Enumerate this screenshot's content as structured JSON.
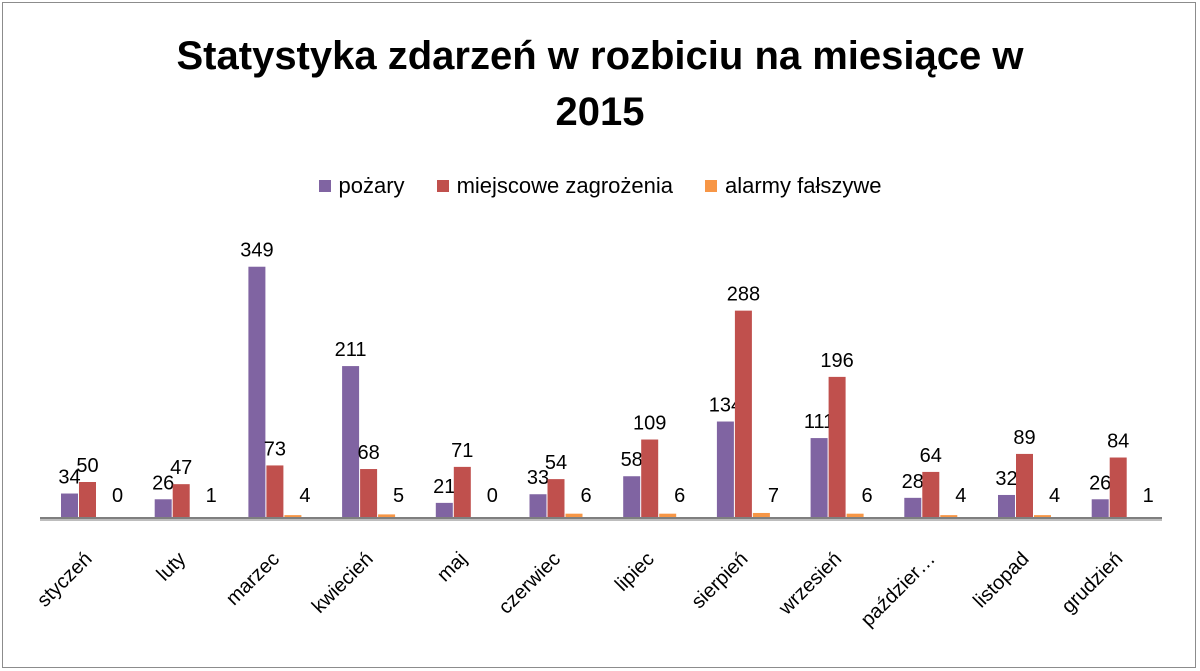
{
  "chart_data": {
    "type": "bar",
    "title": "Statystyka zdarzeń w rozbiciu na miesiące w 2015",
    "title_lines": [
      "Statystyka zdarzeń w rozbiciu na miesiące w",
      "2015"
    ],
    "xlabel": "",
    "ylabel": "",
    "ylim": [
      0,
      349
    ],
    "grid": false,
    "legend_position": "top",
    "categories": [
      "styczeń",
      "luty",
      "marzec",
      "kwiecień",
      "maj",
      "czerwiec",
      "lipiec",
      "sierpień",
      "wrzesień",
      "październik",
      "listopad",
      "grudzień"
    ],
    "category_labels": [
      "styczeń",
      "luty",
      "marzec",
      "kwiecień",
      "maj",
      "czerwiec",
      "lipiec",
      "sierpień",
      "wrzesień",
      "paździer…",
      "listopad",
      "grudzień"
    ],
    "series": [
      {
        "name": "pożary",
        "color": "#8064a2",
        "values": [
          34,
          26,
          349,
          211,
          21,
          33,
          58,
          134,
          111,
          28,
          32,
          26
        ]
      },
      {
        "name": "miejscowe zagrożenia",
        "color": "#c0504d",
        "values": [
          50,
          47,
          73,
          68,
          71,
          54,
          109,
          288,
          196,
          64,
          89,
          84
        ]
      },
      {
        "name": "alarmy fałszywe",
        "color": "#f79646",
        "values": [
          0,
          1,
          4,
          5,
          0,
          6,
          6,
          7,
          6,
          4,
          4,
          1
        ]
      }
    ]
  }
}
